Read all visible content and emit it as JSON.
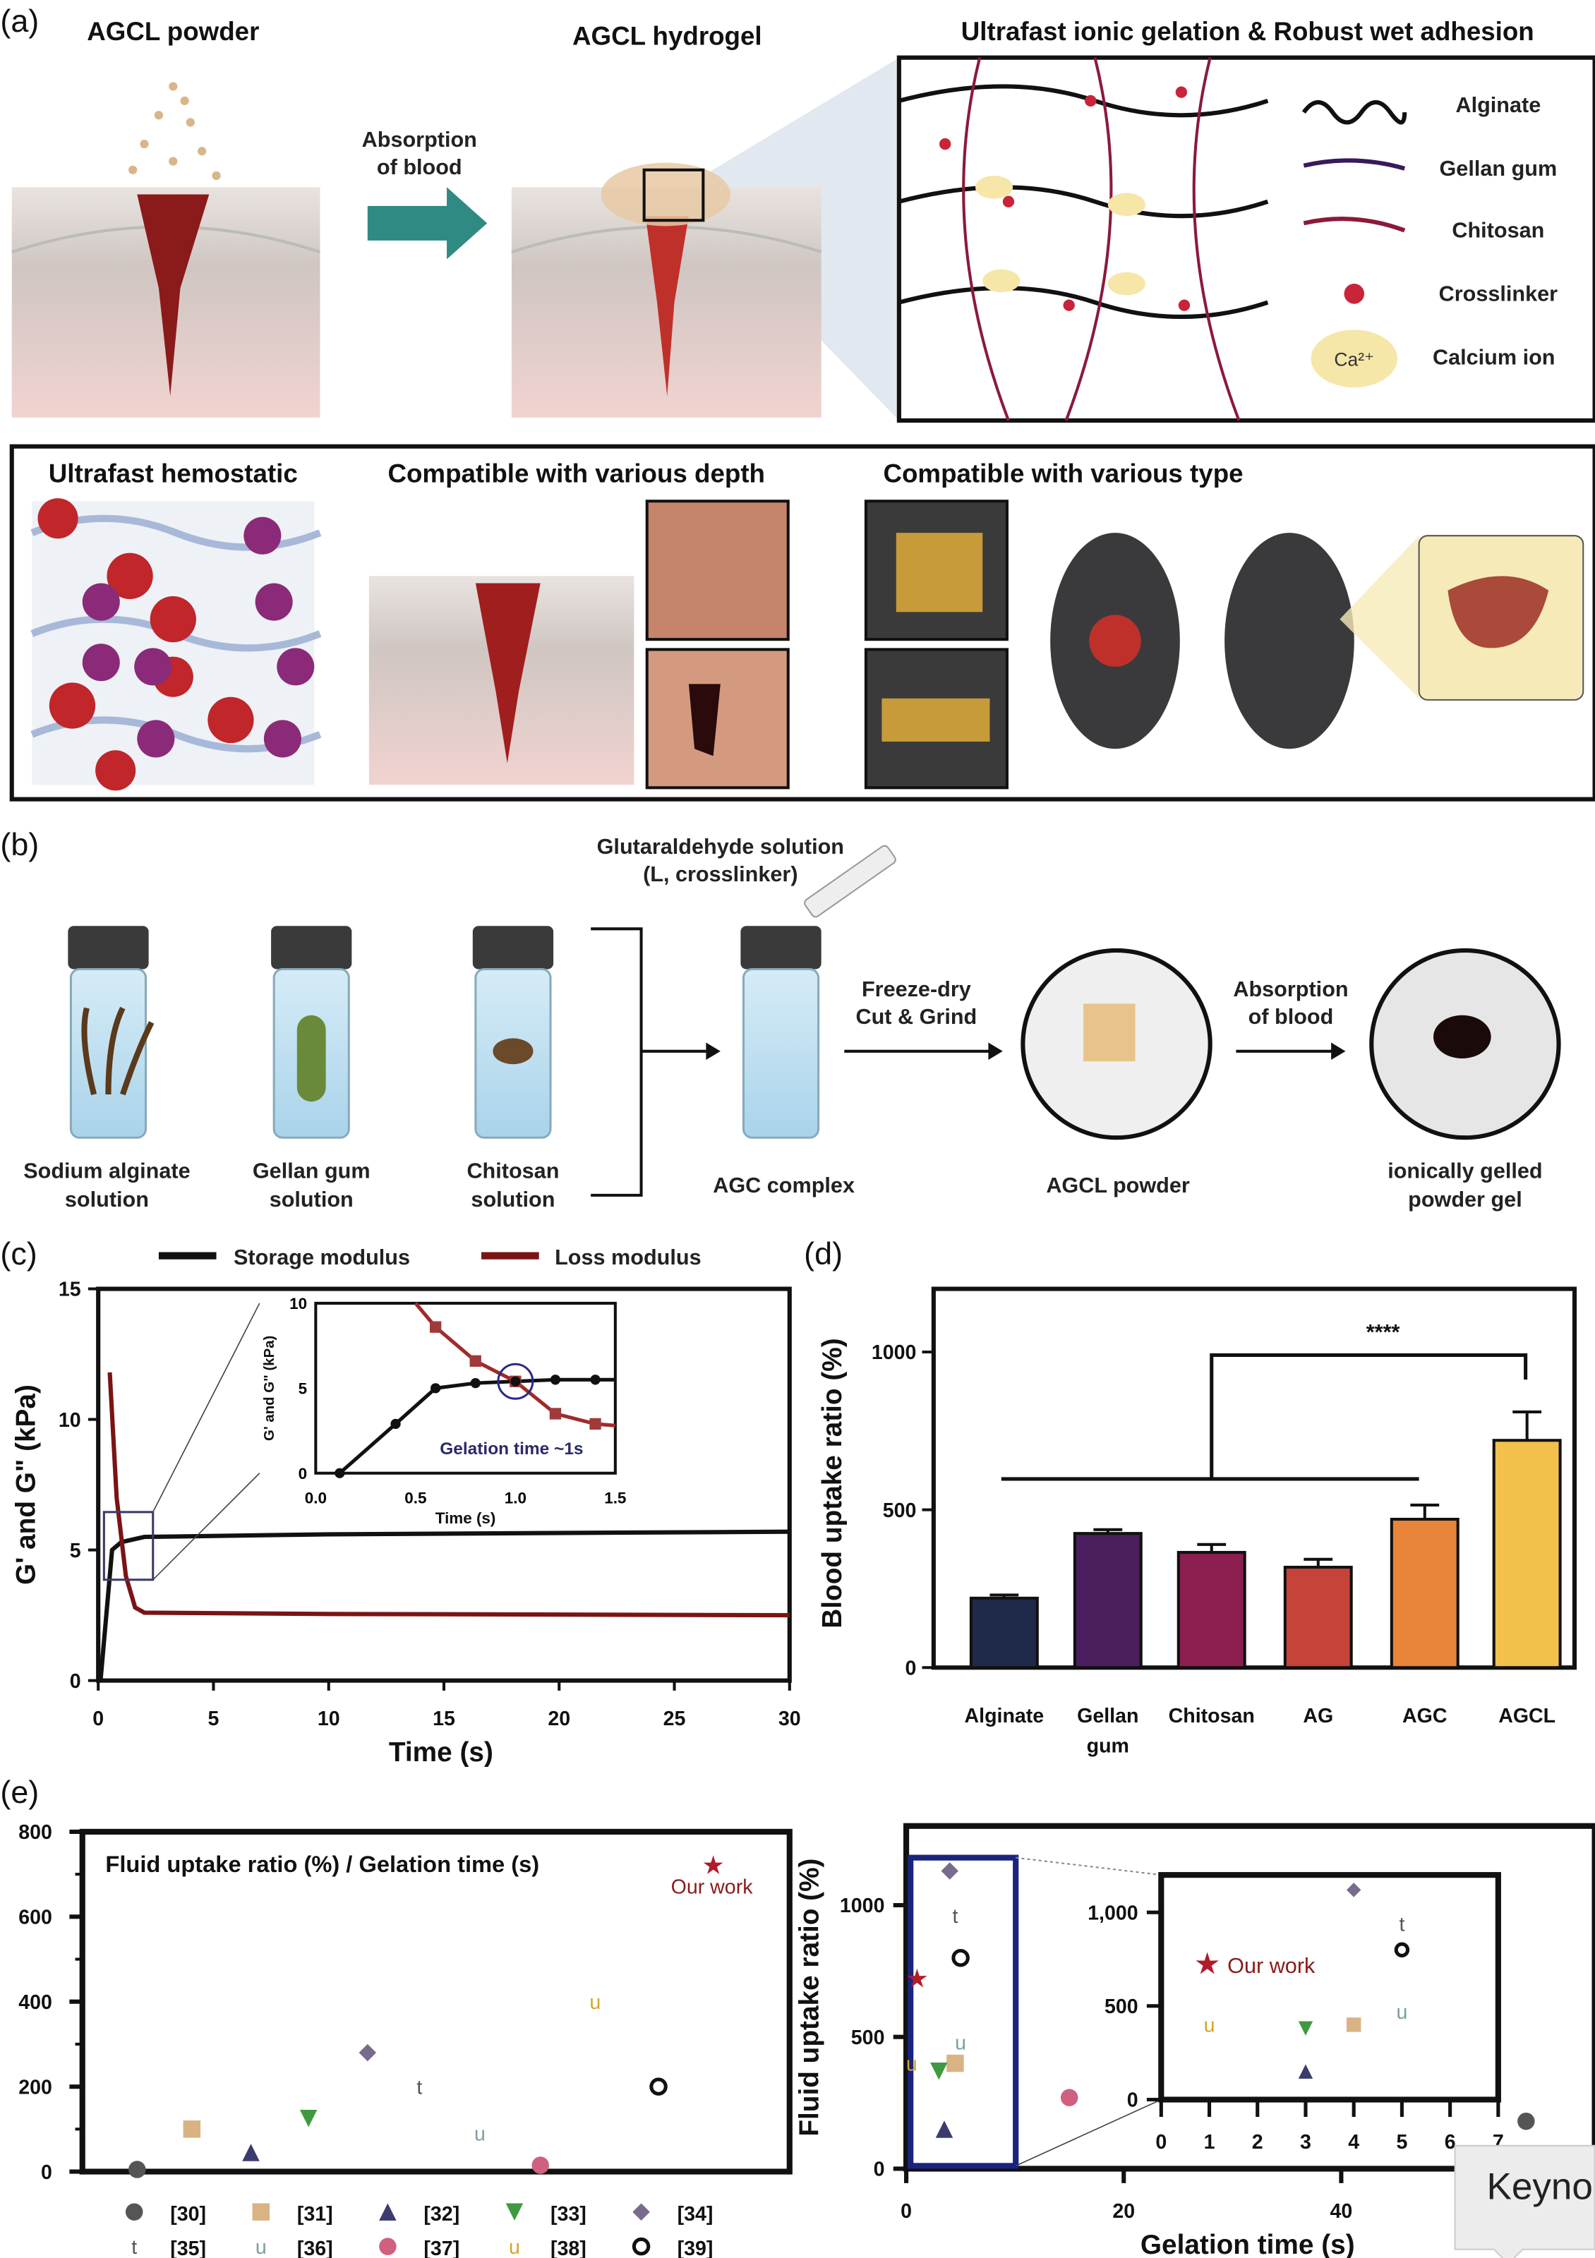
{
  "panel_a": {
    "label": "(a)",
    "powder_title": "AGCL powder",
    "hydrogel_title": "AGCL hydrogel",
    "arrow_label": [
      "Absorption",
      "of blood"
    ],
    "network_title": "Ultrafast ionic gelation & Robust wet adhesion",
    "legend": [
      "Alginate",
      "Gellan gum",
      "Chitosan",
      "Crosslinker",
      "Calcium ion"
    ],
    "ion_text": "Ca²⁺",
    "sub_titles": [
      "Ultrafast hemostatic",
      "Compatible with various depth",
      "Compatible with various type"
    ]
  },
  "panel_b": {
    "label": "(b)",
    "crosslinker": [
      "Glutaraldehyde solution",
      "(L, crosslinker)"
    ],
    "vials": [
      {
        "label": [
          "Sodium alginate",
          "solution"
        ]
      },
      {
        "label": [
          "Gellan gum",
          "solution"
        ]
      },
      {
        "label": [
          "Chitosan",
          "solution"
        ]
      }
    ],
    "complex_label": "AGC complex",
    "step1": [
      "Freeze-dry",
      "Cut & Grind"
    ],
    "powder_label": "AGCL powder",
    "step2": [
      "Absorption",
      "of blood"
    ],
    "gel_label": [
      "ionically gelled",
      "powder gel"
    ]
  },
  "chart_data": [
    {
      "id": "c",
      "panel_label": "(c)",
      "type": "line",
      "xlabel": "Time (s)",
      "ylabel": "G' and G\" (kPa)",
      "xlim": [
        0,
        30
      ],
      "ylim": [
        0,
        15
      ],
      "xticks": [
        "0",
        "5",
        "10",
        "15",
        "20",
        "25",
        "30"
      ],
      "yticks": [
        "0",
        "5",
        "10",
        "15"
      ],
      "legend_placement": "top",
      "series": [
        {
          "name": "Storage modulus",
          "color": "#111111",
          "x": [
            0.1,
            0.4,
            0.6,
            1,
            2,
            10,
            30
          ],
          "y": [
            0,
            3,
            5,
            5.3,
            5.5,
            5.6,
            5.7
          ]
        },
        {
          "name": "Loss modulus",
          "color": "#7a1414",
          "x": [
            0.5,
            0.8,
            1.2,
            1.6,
            2,
            10,
            30
          ],
          "y": [
            11.8,
            7,
            4,
            2.8,
            2.6,
            2.55,
            2.5
          ]
        }
      ],
      "inset": {
        "xlabel": "Time (s)",
        "ylabel": "G' and G\" (kPa)",
        "xlim": [
          0,
          1.5
        ],
        "ylim": [
          0,
          10
        ],
        "xticks": [
          "0.0",
          "0.5",
          "1.0",
          "1.5"
        ],
        "yticks": [
          "0",
          "5",
          "10"
        ],
        "annotation": "Gelation time ~1s",
        "series": [
          {
            "color": "#111111",
            "x": [
              0.12,
              0.4,
              0.6,
              0.8,
              1.0,
              1.2,
              1.4
            ],
            "y": [
              0,
              2.9,
              5,
              5.3,
              5.4,
              5.5,
              5.5
            ]
          },
          {
            "color": "#a02a2a",
            "x": [
              0.6,
              0.8,
              1.0,
              1.2,
              1.4
            ],
            "y": [
              8.6,
              6.6,
              5.4,
              3.5,
              2.9
            ]
          }
        ]
      }
    },
    {
      "id": "d",
      "panel_label": "(d)",
      "type": "bar",
      "ylabel": "Blood uptake ratio (%)",
      "ylim": [
        0,
        1200
      ],
      "yticks": [
        "0",
        "500",
        "1000"
      ],
      "categories": [
        "Alginate",
        "Gellan gum",
        "Chitosan",
        "AG",
        "AGC",
        "AGCL"
      ],
      "values": [
        220,
        425,
        365,
        318,
        470,
        720
      ],
      "errors": [
        10,
        12,
        25,
        25,
        45,
        90
      ],
      "colors": [
        "#1f2a4a",
        "#4a1e5c",
        "#8c1f4f",
        "#c6433a",
        "#e8853a",
        "#f3c04c"
      ],
      "significance": "****"
    },
    {
      "id": "e-left",
      "panel_label": "(e)",
      "type": "scatter",
      "title": "Fluid uptake ratio (%) / Gelation time (s)",
      "ylim": [
        0,
        800
      ],
      "yticks": [
        "0",
        "200",
        "400",
        "600",
        "800"
      ],
      "points": [
        {
          "ref": "[30]",
          "value": 5,
          "marker": "circle",
          "color": "#555555"
        },
        {
          "ref": "[31]",
          "value": 100,
          "marker": "square",
          "color": "#d9b383"
        },
        {
          "ref": "[32]",
          "value": 45,
          "marker": "triangle",
          "color": "#3b3b6e"
        },
        {
          "ref": "[33]",
          "value": 125,
          "marker": "triangle-down",
          "color": "#3f9a3f"
        },
        {
          "ref": "[34]",
          "value": 280,
          "marker": "diamond",
          "color": "#7a6a8e"
        },
        {
          "ref": "[35]",
          "value": 200,
          "marker": "t",
          "color": "#555555"
        },
        {
          "ref": "[36]",
          "value": 90,
          "marker": "u",
          "color": "#7aa0a0"
        },
        {
          "ref": "[37]",
          "value": 15,
          "marker": "hexagon",
          "color": "#d06080"
        },
        {
          "ref": "[38]",
          "value": 400,
          "marker": "u",
          "color": "#d4a52a"
        },
        {
          "ref": "[39]",
          "value": 200,
          "marker": "ring",
          "color": "#111111"
        },
        {
          "ref": "Our work",
          "value": 720,
          "marker": "star",
          "color": "#b01c2a"
        }
      ]
    },
    {
      "id": "e-right",
      "type": "scatter",
      "xlabel": "Gelation time (s)",
      "ylabel": "Fluid uptake ratio (%)",
      "xticks": [
        "0",
        "20",
        "40"
      ],
      "yticks": [
        "0",
        "500",
        "1000"
      ],
      "points": [
        {
          "ref": "Our work",
          "x": 1,
          "y": 720
        },
        {
          "ref": "[34]",
          "x": 4,
          "y": 1130
        },
        {
          "ref": "[35]",
          "x": 4.5,
          "y": 960
        },
        {
          "ref": "[39]",
          "x": 5,
          "y": 800
        },
        {
          "ref": "[36]",
          "x": 5,
          "y": 480
        },
        {
          "ref": "[31]",
          "x": 4.5,
          "y": 400
        },
        {
          "ref": "[33]",
          "x": 3,
          "y": 370
        },
        {
          "ref": "[38]",
          "x": 0.5,
          "y": 400
        },
        {
          "ref": "[32]",
          "x": 3.5,
          "y": 150
        },
        {
          "ref": "[37]",
          "x": 15,
          "y": 270
        },
        {
          "ref": "[30]",
          "x": 57,
          "y": 180
        }
      ],
      "inset": {
        "xlim": [
          0,
          7
        ],
        "ylim": [
          0,
          1200
        ],
        "xticks": [
          "0",
          "1",
          "2",
          "3",
          "4",
          "5",
          "6",
          "7"
        ],
        "yticks": [
          "0",
          "500",
          "1,000"
        ],
        "annotation": "Our work"
      }
    }
  ],
  "overlay": {
    "tooltip": "Keyno"
  }
}
